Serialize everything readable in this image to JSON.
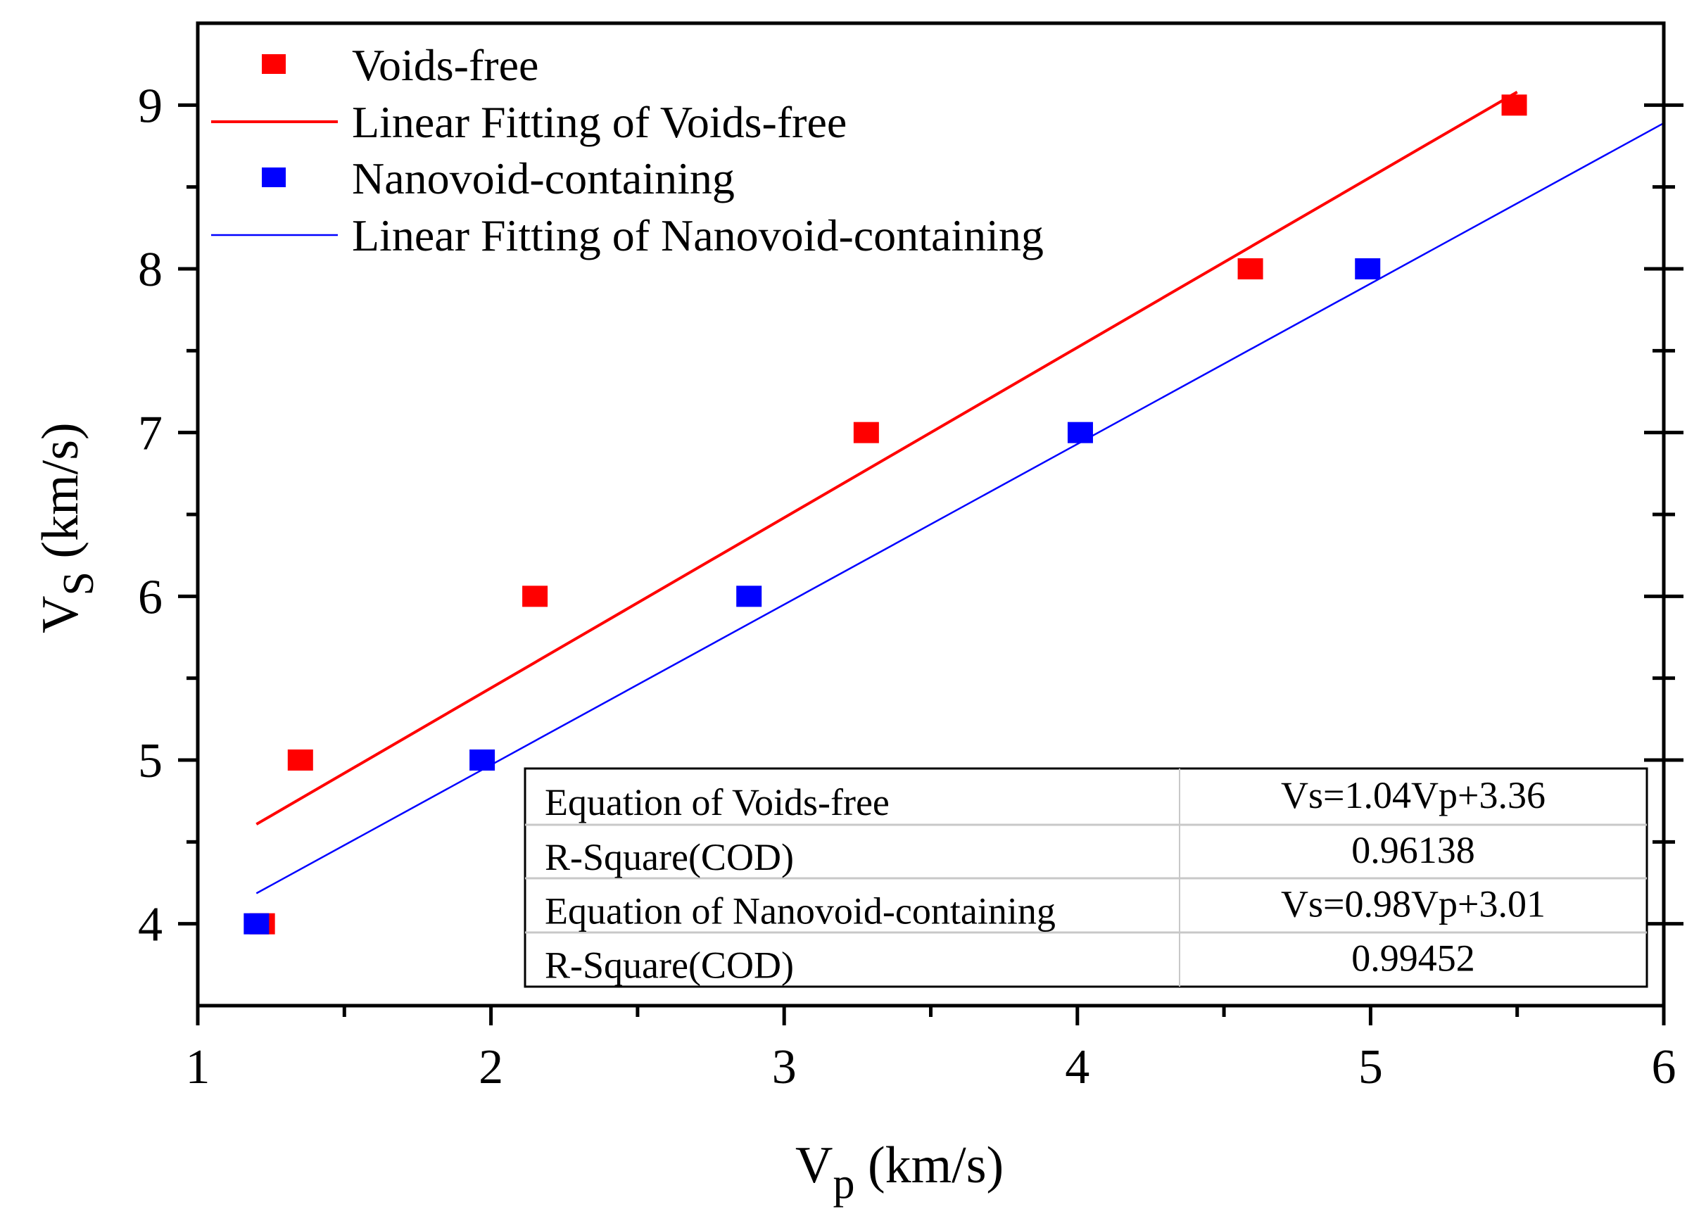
{
  "chart_data": {
    "type": "scatter",
    "title": "",
    "xlabel": "V",
    "xlabel_sub": "p",
    "xlabel_unit": " (km/s)",
    "ylabel": "V",
    "ylabel_sub": "S",
    "ylabel_unit": " (km/s)",
    "xlim": [
      1,
      6
    ],
    "ylim": [
      3.5,
      9.5
    ],
    "xticks": [
      1,
      2,
      3,
      4,
      5,
      6
    ],
    "yticks": [
      4,
      5,
      6,
      7,
      8,
      9
    ],
    "grid": false,
    "legend_placement": "top-left",
    "series": [
      {
        "name": "Voids-free",
        "kind": "scatter",
        "color": "#ff0000",
        "x": [
          1.22,
          1.35,
          2.15,
          3.28,
          4.59,
          5.49
        ],
        "y": [
          4,
          5,
          6,
          7,
          8,
          9
        ]
      },
      {
        "name": "Linear Fitting of Voids-free",
        "kind": "line",
        "color": "#ff0000",
        "slope": 1.04,
        "intercept": 3.36,
        "x_range": [
          1.2,
          5.5
        ]
      },
      {
        "name": "Nanovoid-containing",
        "kind": "scatter",
        "color": "#0000ff",
        "x": [
          1.2,
          1.97,
          2.88,
          4.01,
          4.99
        ],
        "y": [
          4,
          5,
          6,
          7,
          8
        ]
      },
      {
        "name": "Linear Fitting of Nanovoid-containing",
        "kind": "line",
        "color": "#0000ff",
        "slope": 0.98,
        "intercept": 3.01,
        "x_range": [
          1.2,
          6
        ]
      }
    ],
    "table": [
      [
        "Equation of Voids-free",
        "Vs=1.04Vp+3.36"
      ],
      [
        "R-Square(COD)",
        "0.96138"
      ],
      [
        "Equation of Nanovoid-containing",
        "Vs=0.98Vp+3.01"
      ],
      [
        "R-Square(COD)",
        "0.99452"
      ]
    ]
  }
}
